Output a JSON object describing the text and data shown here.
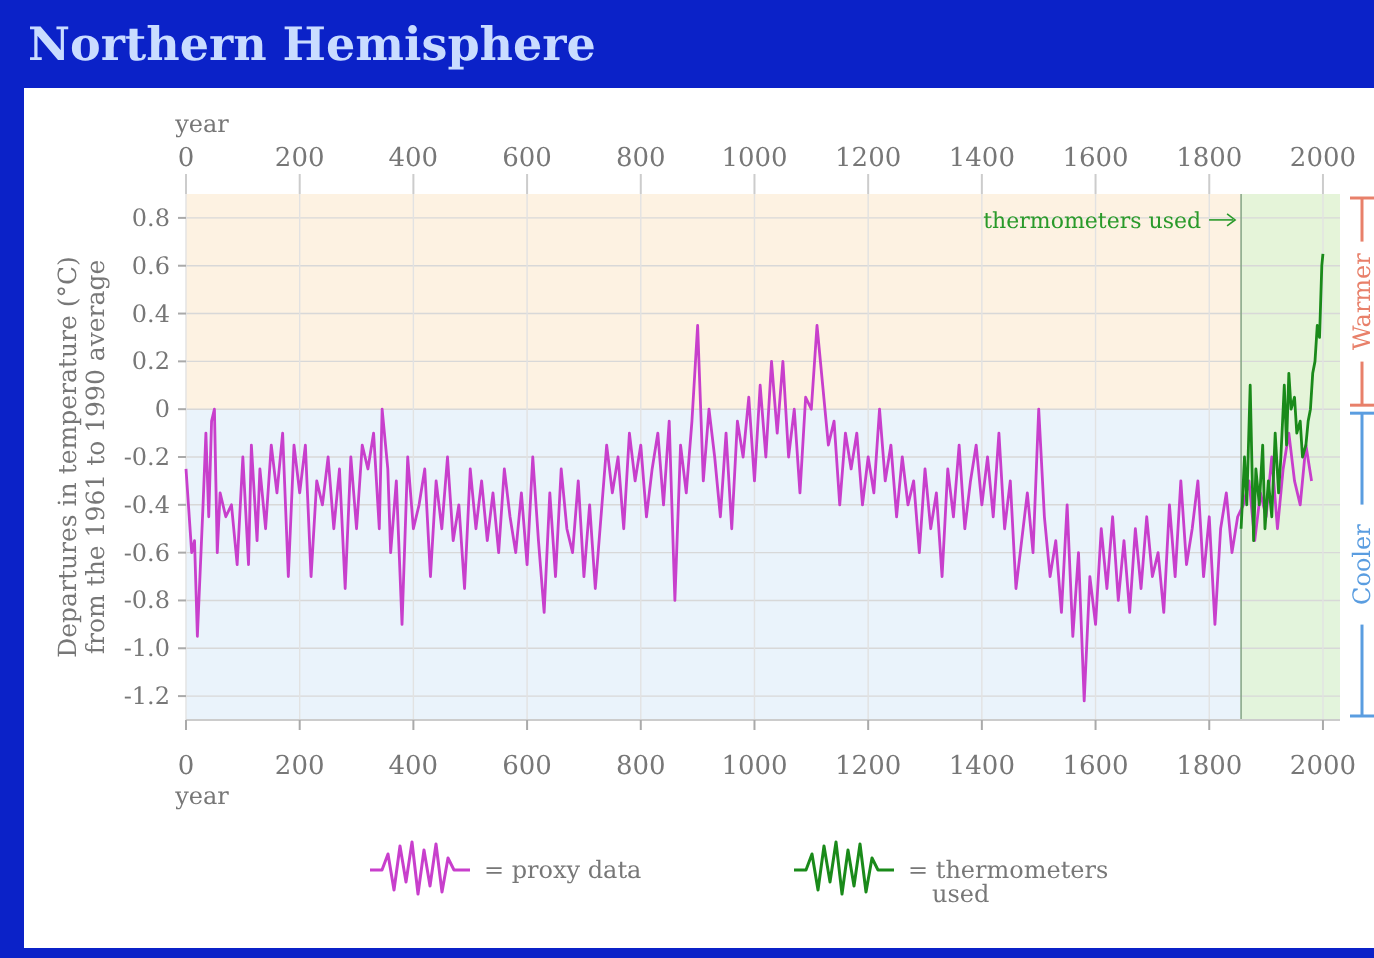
{
  "chart_data": {
    "type": "line",
    "title": "Northern Hemisphere",
    "xlabel": "year",
    "x2label": "year",
    "ylabel": "Departures in temperature (°C) from the 1961 to 1990 average",
    "xlim": [
      0,
      2030
    ],
    "xticks": [
      0,
      200,
      400,
      600,
      800,
      1000,
      1200,
      1400,
      1600,
      1800,
      2000
    ],
    "x2lim": [
      0,
      2030
    ],
    "x2ticks": [
      0,
      200,
      400,
      600,
      800,
      1000,
      1200,
      1400,
      1600,
      1800,
      2000
    ],
    "ylim": [
      -1.3,
      0.9
    ],
    "yticks": [
      0.8,
      0.6,
      0.4,
      0.2,
      0,
      -0.2,
      -0.4,
      -0.6,
      -0.8,
      {
        "value": -1,
        "label": "-1.0"
      },
      -1.2
    ],
    "grid": true,
    "legend": "bottom",
    "line_style": "solid",
    "marker": "none",
    "bands": [
      {
        "axis": "y",
        "from": 0,
        "to": 0.9,
        "label": "Warmer",
        "color": "#fdf2e2"
      },
      {
        "axis": "y",
        "from": -1.3,
        "to": 0,
        "label": "Cooler",
        "color": "#eaf3fb"
      },
      {
        "axis": "x",
        "from": 1856,
        "to": 2030,
        "color": "#e2f4d8"
      }
    ],
    "ref_lines": [
      {
        "axis": "x",
        "value": 1856,
        "color": "#8aa88a"
      }
    ],
    "annotations": [
      "thermometers used"
    ],
    "series": [
      {
        "name": "= proxy data",
        "color": "#c83fcc",
        "x": [
          0,
          10,
          15,
          20,
          30,
          35,
          40,
          45,
          50,
          55,
          60,
          70,
          80,
          90,
          100,
          110,
          115,
          125,
          130,
          140,
          150,
          160,
          170,
          180,
          190,
          200,
          210,
          220,
          230,
          240,
          250,
          260,
          270,
          280,
          290,
          300,
          310,
          320,
          330,
          340,
          345,
          355,
          360,
          370,
          380,
          390,
          400,
          410,
          420,
          430,
          440,
          450,
          460,
          470,
          480,
          490,
          500,
          510,
          520,
          530,
          540,
          550,
          560,
          570,
          580,
          590,
          600,
          610,
          620,
          630,
          640,
          650,
          660,
          670,
          680,
          690,
          700,
          710,
          720,
          730,
          740,
          750,
          760,
          770,
          780,
          790,
          800,
          810,
          820,
          830,
          840,
          850,
          860,
          870,
          880,
          890,
          900,
          910,
          920,
          930,
          940,
          950,
          960,
          970,
          980,
          990,
          1000,
          1010,
          1020,
          1030,
          1040,
          1050,
          1060,
          1070,
          1080,
          1090,
          1100,
          1110,
          1120,
          1130,
          1140,
          1150,
          1160,
          1170,
          1180,
          1190,
          1200,
          1210,
          1220,
          1230,
          1240,
          1250,
          1260,
          1270,
          1280,
          1290,
          1300,
          1310,
          1320,
          1330,
          1340,
          1350,
          1360,
          1370,
          1380,
          1390,
          1400,
          1410,
          1420,
          1430,
          1440,
          1450,
          1460,
          1470,
          1480,
          1490,
          1500,
          1510,
          1520,
          1530,
          1540,
          1550,
          1560,
          1570,
          1580,
          1590,
          1600,
          1610,
          1620,
          1630,
          1640,
          1650,
          1660,
          1670,
          1680,
          1690,
          1700,
          1710,
          1720,
          1730,
          1740,
          1750,
          1760,
          1770,
          1780,
          1790,
          1800,
          1810,
          1820,
          1830,
          1840,
          1850,
          1860,
          1870,
          1880,
          1890,
          1900,
          1910,
          1920,
          1930,
          1940,
          1950,
          1960,
          1970,
          1980
        ],
        "values": [
          -0.25,
          -0.6,
          -0.55,
          -0.95,
          -0.4,
          -0.1,
          -0.45,
          -0.05,
          0,
          -0.6,
          -0.35,
          -0.45,
          -0.4,
          -0.65,
          -0.2,
          -0.65,
          -0.15,
          -0.55,
          -0.25,
          -0.5,
          -0.15,
          -0.35,
          -0.1,
          -0.7,
          -0.15,
          -0.35,
          -0.15,
          -0.7,
          -0.3,
          -0.4,
          -0.2,
          -0.5,
          -0.25,
          -0.75,
          -0.2,
          -0.5,
          -0.15,
          -0.25,
          -0.1,
          -0.5,
          0,
          -0.25,
          -0.6,
          -0.3,
          -0.9,
          -0.2,
          -0.5,
          -0.4,
          -0.25,
          -0.7,
          -0.3,
          -0.5,
          -0.2,
          -0.55,
          -0.4,
          -0.75,
          -0.25,
          -0.5,
          -0.3,
          -0.55,
          -0.35,
          -0.6,
          -0.25,
          -0.45,
          -0.6,
          -0.35,
          -0.65,
          -0.2,
          -0.55,
          -0.85,
          -0.35,
          -0.7,
          -0.25,
          -0.5,
          -0.6,
          -0.3,
          -0.7,
          -0.4,
          -0.75,
          -0.45,
          -0.15,
          -0.35,
          -0.2,
          -0.5,
          -0.1,
          -0.3,
          -0.15,
          -0.45,
          -0.25,
          -0.1,
          -0.4,
          -0.05,
          -0.8,
          -0.15,
          -0.35,
          -0.05,
          0.35,
          -0.3,
          0,
          -0.2,
          -0.45,
          -0.1,
          -0.5,
          -0.05,
          -0.2,
          0.05,
          -0.3,
          0.1,
          -0.2,
          0.2,
          -0.1,
          0.2,
          -0.2,
          0,
          -0.35,
          0.05,
          0,
          0.35,
          0.1,
          -0.15,
          -0.05,
          -0.4,
          -0.1,
          -0.25,
          -0.1,
          -0.4,
          -0.2,
          -0.35,
          0,
          -0.3,
          -0.15,
          -0.45,
          -0.2,
          -0.4,
          -0.3,
          -0.6,
          -0.25,
          -0.5,
          -0.35,
          -0.7,
          -0.25,
          -0.45,
          -0.15,
          -0.5,
          -0.3,
          -0.15,
          -0.4,
          -0.2,
          -0.45,
          -0.1,
          -0.5,
          -0.3,
          -0.75,
          -0.55,
          -0.35,
          -0.6,
          0,
          -0.45,
          -0.7,
          -0.55,
          -0.85,
          -0.4,
          -0.95,
          -0.6,
          -1.22,
          -0.7,
          -0.9,
          -0.5,
          -0.75,
          -0.45,
          -0.8,
          -0.55,
          -0.85,
          -0.5,
          -0.75,
          -0.45,
          -0.7,
          -0.6,
          -0.85,
          -0.4,
          -0.7,
          -0.3,
          -0.65,
          -0.5,
          -0.3,
          -0.7,
          -0.45,
          -0.9,
          -0.5,
          -0.35,
          -0.6,
          -0.45,
          -0.4,
          -0.3,
          -0.55,
          -0.35,
          -0.45,
          -0.2,
          -0.5,
          -0.25,
          -0.1,
          -0.3,
          -0.4,
          -0.15,
          -0.3
        ]
      },
      {
        "name": "= thermometers used",
        "color": "#1a8a1a",
        "x": [
          1856,
          1862,
          1866,
          1872,
          1878,
          1882,
          1888,
          1894,
          1898,
          1904,
          1910,
          1916,
          1922,
          1926,
          1932,
          1936,
          1940,
          1944,
          1950,
          1954,
          1960,
          1964,
          1970,
          1974,
          1978,
          1982,
          1986,
          1990,
          1994,
          1998,
          2000
        ],
        "values": [
          -0.5,
          -0.2,
          -0.4,
          0.1,
          -0.55,
          -0.25,
          -0.4,
          -0.15,
          -0.5,
          -0.3,
          -0.45,
          -0.1,
          -0.35,
          -0.2,
          0.1,
          -0.15,
          0.15,
          0,
          0.05,
          -0.1,
          -0.05,
          -0.2,
          -0.15,
          -0.05,
          0,
          0.15,
          0.2,
          0.35,
          0.3,
          0.6,
          0.65
        ]
      }
    ]
  }
}
